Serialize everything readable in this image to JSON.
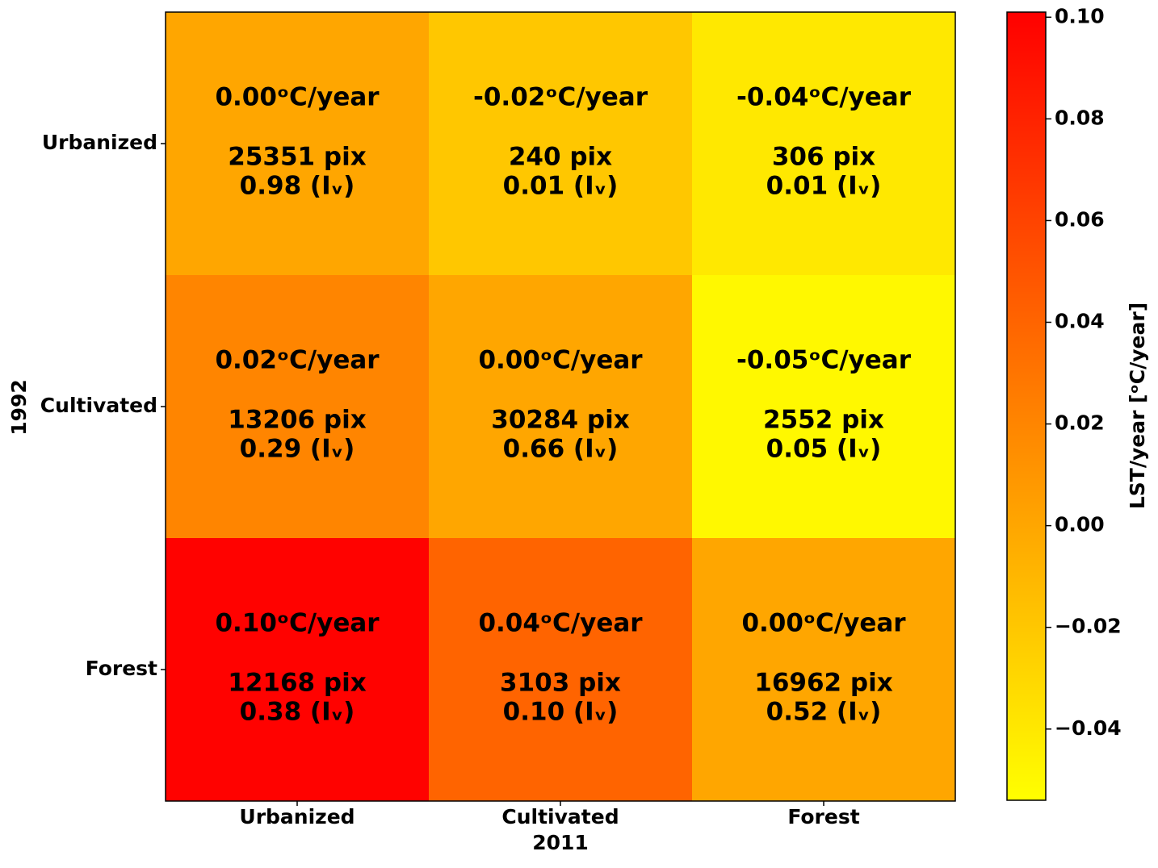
{
  "chart_data": {
    "type": "heatmap",
    "x_label": "2011",
    "y_label": "1992",
    "x_categories": [
      "Urbanized",
      "Cultivated",
      "Forest"
    ],
    "y_categories": [
      "Urbanized",
      "Cultivated",
      "Forest"
    ],
    "values": [
      [
        0.0,
        -0.02,
        -0.04
      ],
      [
        0.02,
        0.0,
        -0.05
      ],
      [
        0.1,
        0.04,
        0.0
      ]
    ],
    "value_labels": [
      [
        "0.00ᵒC/year",
        "-0.02ᵒC/year",
        "-0.04ᵒC/year"
      ],
      [
        "0.02ᵒC/year",
        "0.00ᵒC/year",
        "-0.05ᵒC/year"
      ],
      [
        "0.10ᵒC/year",
        "0.04ᵒC/year",
        "0.00ᵒC/year"
      ]
    ],
    "pixel_labels": [
      [
        "25351 pix",
        "240 pix",
        "306 pix"
      ],
      [
        "13206 pix",
        "30284 pix",
        "2552 pix"
      ],
      [
        "12168 pix",
        "3103 pix",
        "16962 pix"
      ]
    ],
    "index_labels": [
      [
        "0.98 (Iᵥ)",
        "0.01 (Iᵥ)",
        "0.01 (Iᵥ)"
      ],
      [
        "0.29 (Iᵥ)",
        "0.66 (Iᵥ)",
        "0.05 (Iᵥ)"
      ],
      [
        "0.38 (Iᵥ)",
        "0.10 (Iᵥ)",
        "0.52 (Iᵥ)"
      ]
    ],
    "colorbar_label": "LST/year [ᵒC/year]",
    "clim": [
      -0.054,
      0.101
    ],
    "colorbar_ticks": [
      {
        "value": -0.04,
        "label": "−0.04"
      },
      {
        "value": -0.02,
        "label": "−0.02"
      },
      {
        "value": 0.0,
        "label": "0.00"
      },
      {
        "value": 0.02,
        "label": "0.02"
      },
      {
        "value": 0.04,
        "label": "0.04"
      },
      {
        "value": 0.06,
        "label": "0.06"
      },
      {
        "value": 0.08,
        "label": "0.08"
      },
      {
        "value": 0.1,
        "label": "0.10"
      }
    ],
    "colormap": [
      "#ffff00",
      "#ff0000"
    ]
  }
}
